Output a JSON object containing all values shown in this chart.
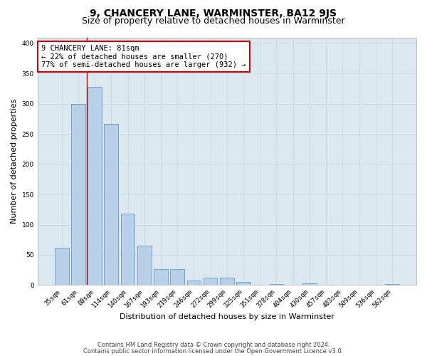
{
  "title": "9, CHANCERY LANE, WARMINSTER, BA12 9JS",
  "subtitle": "Size of property relative to detached houses in Warminster",
  "xlabel": "Distribution of detached houses by size in Warminster",
  "ylabel": "Number of detached properties",
  "categories": [
    "35sqm",
    "61sqm",
    "88sqm",
    "114sqm",
    "140sqm",
    "167sqm",
    "193sqm",
    "219sqm",
    "246sqm",
    "272sqm",
    "299sqm",
    "325sqm",
    "351sqm",
    "378sqm",
    "404sqm",
    "430sqm",
    "457sqm",
    "483sqm",
    "509sqm",
    "536sqm",
    "562sqm"
  ],
  "values": [
    62,
    300,
    328,
    267,
    118,
    65,
    27,
    27,
    8,
    12,
    12,
    5,
    0,
    2,
    0,
    3,
    0,
    0,
    0,
    0,
    2
  ],
  "bar_color": "#b8d0e8",
  "bar_edge_color": "#6699cc",
  "line_color": "#cc0000",
  "line_x_index": 2,
  "annotation_box_text": "9 CHANCERY LANE: 81sqm\n← 22% of detached houses are smaller (270)\n77% of semi-detached houses are larger (932) →",
  "annotation_box_color": "#cc0000",
  "annotation_box_fill": "#ffffff",
  "ylim": [
    0,
    410
  ],
  "yticks": [
    0,
    50,
    100,
    150,
    200,
    250,
    300,
    350,
    400
  ],
  "grid_color": "#c8d8e8",
  "plot_bg_color": "#dce8f0",
  "title_fontsize": 10,
  "subtitle_fontsize": 9,
  "tick_fontsize": 6.5,
  "label_fontsize": 8,
  "footer_line1": "Contains HM Land Registry data © Crown copyright and database right 2024.",
  "footer_line2": "Contains public sector information licensed under the Open Government Licence v3.0."
}
